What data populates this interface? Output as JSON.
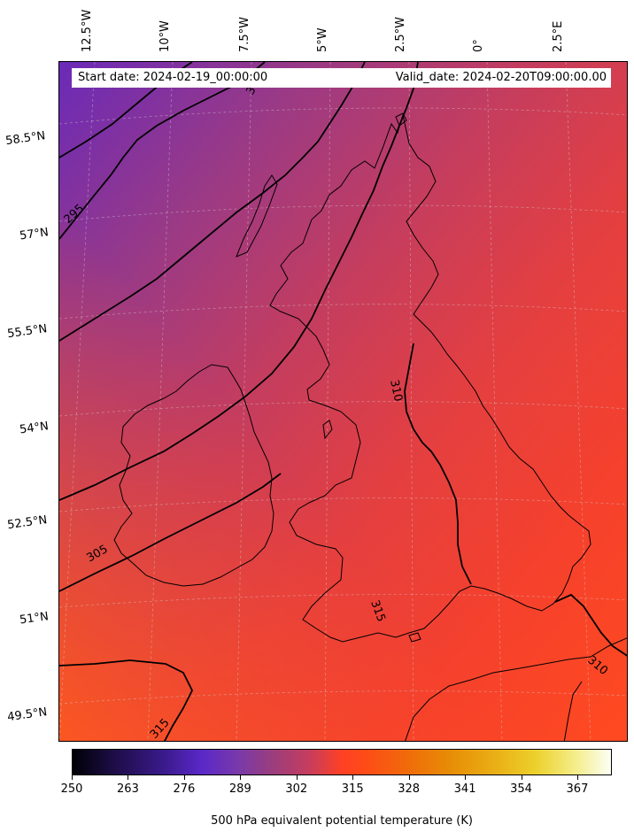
{
  "header": {
    "start_date": "Start date: 2024-02-19_00:00:00",
    "valid_date": "Valid_date: 2024-02-20T09:00:00.00"
  },
  "axes": {
    "longitude_ticks": [
      "12.5°W",
      "10°W",
      "7.5°W",
      "5°W",
      "2.5°W",
      "0°",
      "2.5°E"
    ],
    "latitude_ticks": [
      "58.5°N",
      "57°N",
      "55.5°N",
      "54°N",
      "52.5°N",
      "51°N",
      "49.5°N"
    ]
  },
  "contour_labels": [
    "295",
    "300",
    "305",
    "310",
    "310",
    "310",
    "315",
    "315"
  ],
  "colorbar": {
    "ticks": [
      "250",
      "263",
      "276",
      "289",
      "302",
      "315",
      "328",
      "341",
      "354",
      "367"
    ],
    "label": "500 hPa equivalent potential temperature (K)",
    "range": [
      250,
      375
    ]
  },
  "colors": {
    "cold": "#6a2ab8",
    "mid": "#c63d5d",
    "warm": "#ff4024",
    "coast": "#000000"
  }
}
